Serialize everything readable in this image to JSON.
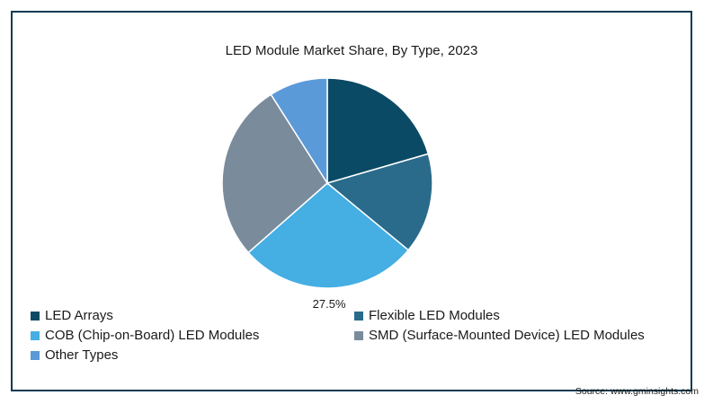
{
  "chart_data": {
    "type": "pie",
    "title": "LED Module Market Share, By Type, 2023",
    "categories": [
      "LED Arrays",
      "Flexible LED Modules",
      "COB (Chip-on-Board) LED Modules",
      "SMD (Surface-Mounted Device) LED Modules",
      "Other Types"
    ],
    "values": [
      20.5,
      15.5,
      27.5,
      27.5,
      9.0
    ],
    "colors": [
      "#0b4a64",
      "#2a6b8c",
      "#45aee3",
      "#7a8b9c",
      "#5b9ad8"
    ],
    "data_labels": [
      "",
      "",
      "27.5%",
      "",
      ""
    ],
    "legend_position": "bottom",
    "start_angle": "top, clockwise"
  },
  "source": "Source: www.gminsights.com"
}
